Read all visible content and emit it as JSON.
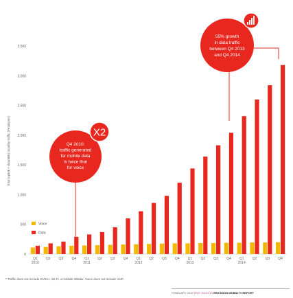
{
  "chart_data": {
    "type": "bar",
    "ylabel": "Total (uplink + downlink) monthly traffic (PetaBytes)",
    "ylim": [
      0,
      3500
    ],
    "yticks": [
      "0",
      "500",
      "1,000",
      "1,500",
      "2,000",
      "2,500",
      "3,000",
      "3,500"
    ],
    "ytick_values": [
      0,
      500,
      1000,
      1500,
      2000,
      2500,
      3000,
      3500
    ],
    "categories": [
      "Q1 2010",
      "Q2 2010",
      "Q3 2010",
      "Q4 2010",
      "Q1 2011",
      "Q2 2011",
      "Q3 2011",
      "Q4 2011",
      "Q1 2012",
      "Q2 2012",
      "Q3 2012",
      "Q4 2012",
      "Q1 2013",
      "Q2 2013",
      "Q3 2013",
      "Q4 2013",
      "Q1 2014",
      "Q2 2014",
      "Q3 2014",
      "Q4 2014"
    ],
    "quarter_labels": [
      "Q1",
      "Q2",
      "Q3",
      "Q4",
      "Q1",
      "Q2",
      "Q3",
      "Q4",
      "Q1",
      "Q2",
      "Q3",
      "Q4",
      "Q1",
      "Q2",
      "Q3",
      "Q4",
      "Q1",
      "Q2",
      "Q3",
      "Q4"
    ],
    "year_labels": [
      "2010",
      "2011",
      "2012",
      "2013",
      "2014"
    ],
    "series": [
      {
        "name": "Voice",
        "color": "#f4b800",
        "values": [
          110,
          120,
          130,
          140,
          145,
          150,
          155,
          160,
          165,
          170,
          175,
          180,
          180,
          185,
          185,
          190,
          190,
          195,
          195,
          200
        ]
      },
      {
        "name": "Data",
        "color": "#e8281f",
        "values": [
          140,
          180,
          210,
          290,
          330,
          370,
          450,
          600,
          720,
          860,
          980,
          1200,
          1440,
          1640,
          1830,
          2040,
          2320,
          2600,
          2840,
          3180
        ]
      }
    ],
    "grid": false,
    "legend": "bottom-left",
    "annotations": {
      "q4_2010": {
        "badge": "X2",
        "lines": [
          "Q4 2010:",
          "traffic generated",
          "for mobile data",
          "is twice that",
          "for voice"
        ]
      },
      "growth": {
        "lines": [
          "55% growth",
          "in data traffic",
          "between Q4 2013",
          "and Q4 2014"
        ]
      }
    }
  },
  "footnote": "* Traffic does not include DVB-H, Wi-Fi, or Mobile WiMax. Voice does not include VoIP.",
  "footer": {
    "date": "FEBRUARY 2015",
    "edition": "MWC EDITION",
    "report": "ERICSSON MOBILITY REPORT"
  },
  "colors": {
    "voice": "#f4b800",
    "data": "#e8281f",
    "callout": "#e8281f"
  }
}
